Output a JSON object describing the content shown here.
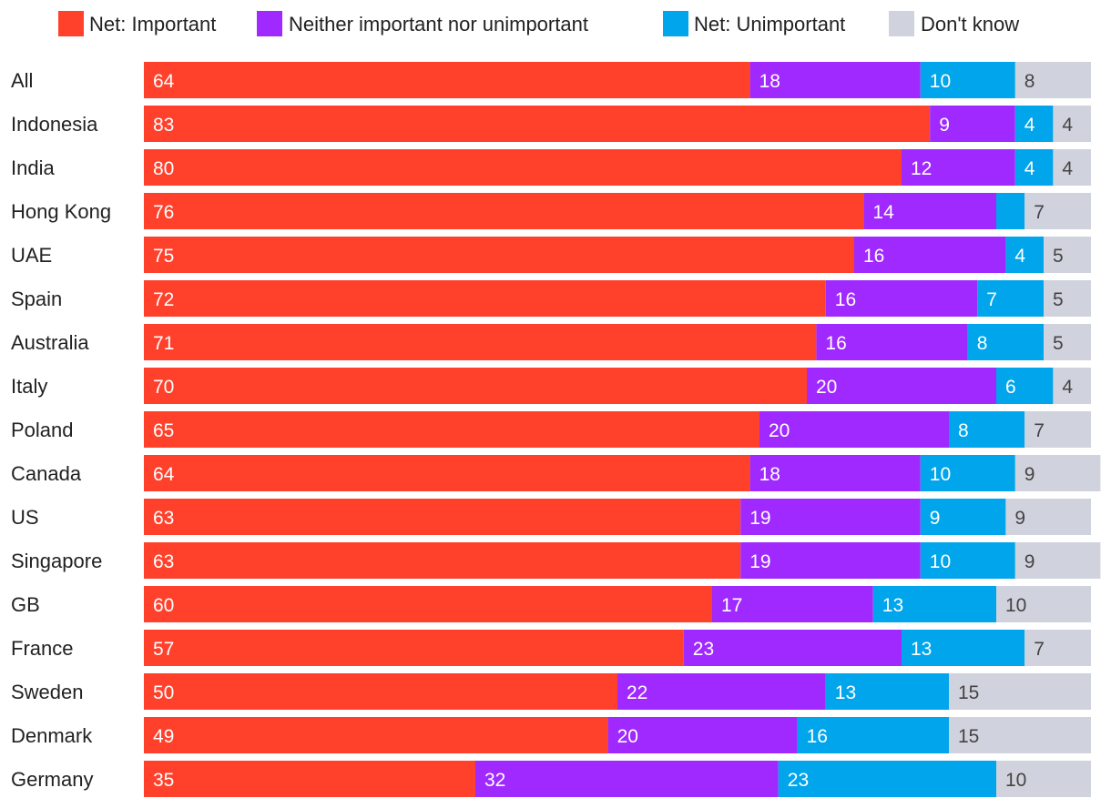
{
  "chart_data": {
    "type": "bar",
    "orientation": "horizontal",
    "stacked": true,
    "title": "",
    "xlabel": "",
    "ylabel": "",
    "legend_position": "top",
    "categories": [
      "All",
      "Indonesia",
      "India",
      "Hong Kong",
      "UAE",
      "Spain",
      "Australia",
      "Italy",
      "Poland",
      "Canada",
      "US",
      "Singapore",
      "GB",
      "France",
      "Sweden",
      "Denmark",
      "Germany"
    ],
    "series": [
      {
        "name": "Net: Important",
        "color": "#ff412c",
        "label_color": "#ffffff",
        "values": [
          64,
          83,
          80,
          76,
          75,
          72,
          71,
          70,
          65,
          64,
          63,
          63,
          60,
          57,
          50,
          49,
          35
        ],
        "labels": [
          "64",
          "83",
          "80",
          "76",
          "75",
          "72",
          "71",
          "70",
          "65",
          "64",
          "63",
          "63",
          "60",
          "57",
          "50",
          "49",
          "35"
        ]
      },
      {
        "name": "Neither important nor unimportant",
        "color": "#9f29ff",
        "label_color": "#ffffff",
        "values": [
          18,
          9,
          12,
          14,
          16,
          16,
          16,
          20,
          20,
          18,
          19,
          19,
          17,
          23,
          22,
          20,
          32
        ],
        "labels": [
          "18",
          "9",
          "12",
          "14",
          "16",
          "16",
          "16",
          "20",
          "20",
          "18",
          "19",
          "19",
          "17",
          "23",
          "22",
          "20",
          "32"
        ]
      },
      {
        "name": "Net: Unimportant",
        "color": "#00a5ec",
        "label_color": "#ffffff",
        "values": [
          10,
          4,
          4,
          3,
          4,
          7,
          8,
          6,
          8,
          10,
          9,
          10,
          13,
          13,
          13,
          16,
          23
        ],
        "labels": [
          "10",
          "4",
          "4",
          "",
          "4",
          "7",
          "8",
          "6",
          "8",
          "10",
          "9",
          "10",
          "13",
          "13",
          "13",
          "16",
          "23"
        ]
      },
      {
        "name": "Don't know",
        "color": "#d0d3dd",
        "label_color": "#444444",
        "values": [
          8,
          4,
          4,
          7,
          5,
          5,
          5,
          4,
          7,
          9,
          9,
          9,
          10,
          7,
          15,
          15,
          10
        ],
        "labels": [
          "8",
          "4",
          "4",
          "7",
          "5",
          "5",
          "5",
          "4",
          "7",
          "9",
          "9",
          "9",
          "10",
          "7",
          "15",
          "15",
          "10"
        ]
      }
    ]
  }
}
